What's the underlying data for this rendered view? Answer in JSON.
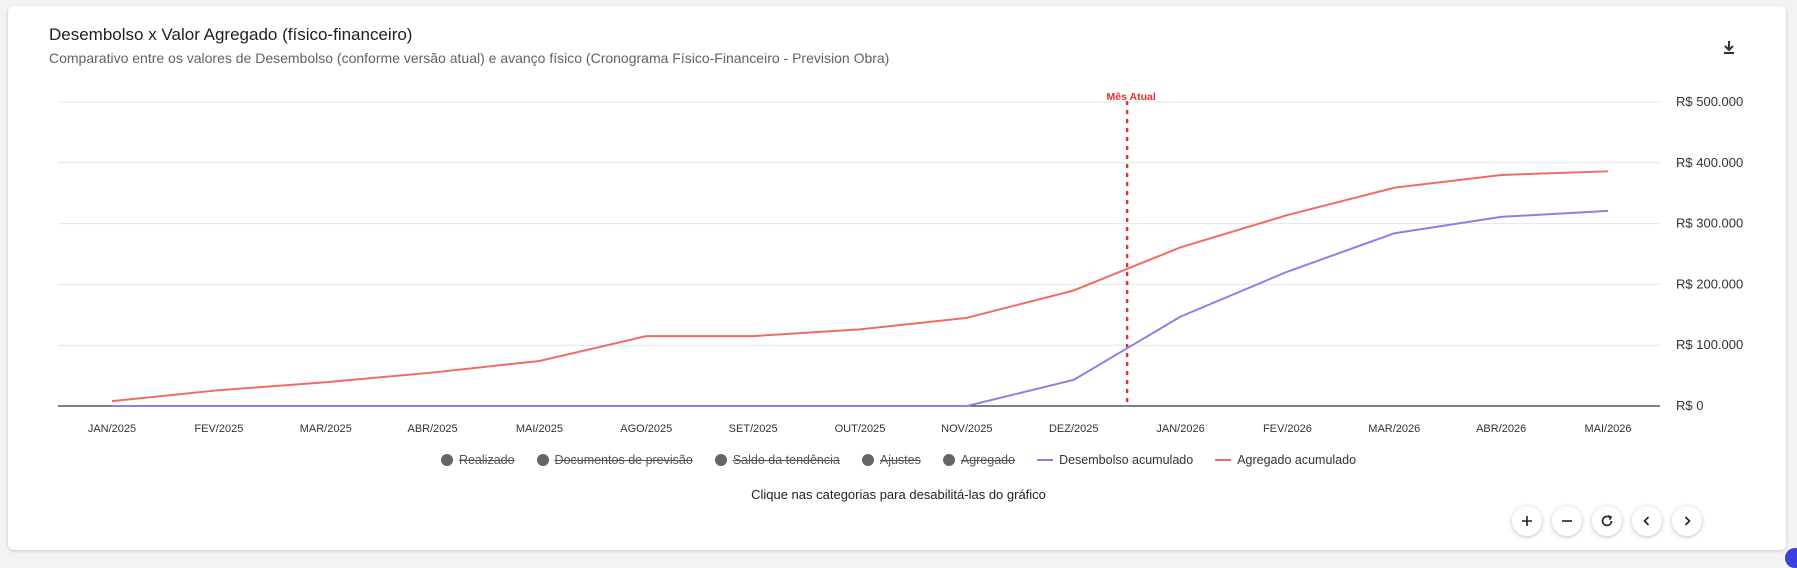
{
  "header": {
    "title": "Desembolso x Valor Agregado (físico-financeiro)",
    "subtitle": "Comparativo entre os valores de Desembolso (conforme versão atual) e avanço físico (Cronograma Físico-Financeiro - Prevision Obra)"
  },
  "icons": {
    "download": "download-icon",
    "zoom_in": "plus-icon",
    "zoom_out": "minus-icon",
    "reset": "refresh-icon",
    "prev": "chevron-left-icon",
    "next": "chevron-right-icon"
  },
  "hint": "Clique nas categorias para desabilitá-las do gráfico",
  "legend": [
    {
      "label": "Realizado",
      "kind": "dot",
      "disabled": true,
      "color": "#666666"
    },
    {
      "label": "Documentos de previsão",
      "kind": "dot",
      "disabled": true,
      "color": "#666666"
    },
    {
      "label": "Saldo da tendência",
      "kind": "dot",
      "disabled": true,
      "color": "#666666"
    },
    {
      "label": "Ajustes",
      "kind": "dot",
      "disabled": true,
      "color": "#666666"
    },
    {
      "label": "Agregado",
      "kind": "dot",
      "disabled": true,
      "color": "#666666"
    },
    {
      "label": "Desembolso acumulado",
      "kind": "line",
      "disabled": false,
      "color": "#8b7fe8"
    },
    {
      "label": "Agregado acumulado",
      "kind": "line",
      "disabled": false,
      "color": "#f26b63"
    }
  ],
  "chart_data": {
    "type": "line",
    "title": "Desembolso x Valor Agregado (físico-financeiro)",
    "categories": [
      "JAN/2025",
      "FEV/2025",
      "MAR/2025",
      "ABR/2025",
      "MAI/2025",
      "AGO/2025",
      "SET/2025",
      "OUT/2025",
      "NOV/2025",
      "DEZ/2025",
      "JAN/2026",
      "FEV/2026",
      "MAR/2026",
      "ABR/2026",
      "MAI/2026"
    ],
    "y_ticks": [
      0,
      100000,
      200000,
      300000,
      400000,
      500000
    ],
    "y_tick_labels": [
      "R$ 0",
      "R$ 100.000",
      "R$ 200.000",
      "R$ 300.000",
      "R$ 400.000",
      "R$ 500.000"
    ],
    "ylim": [
      0,
      500000
    ],
    "y_axis_position": "right",
    "grid": true,
    "series": [
      {
        "name": "Desembolso acumulado",
        "color": "#8b7fe8",
        "values": [
          0,
          0,
          0,
          0,
          0,
          0,
          0,
          0,
          0,
          43000,
          147000,
          221000,
          284000,
          311000,
          321000
        ]
      },
      {
        "name": "Agregado acumulado",
        "color": "#f26b63",
        "values": [
          8000,
          26000,
          39000,
          55000,
          74000,
          115000,
          115000,
          126000,
          145000,
          190000,
          261000,
          314000,
          359000,
          380000,
          386000
        ]
      }
    ],
    "annotation": {
      "label": "Mês Atual",
      "position_between": [
        "DEZ/2025",
        "JAN/2026"
      ],
      "fraction": 0.5,
      "color": "#e03131"
    }
  }
}
